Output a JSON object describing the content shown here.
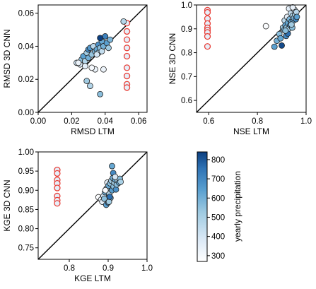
{
  "colors": {
    "ring_red": "#e8413a",
    "ring_red_fill": "#e6eef8",
    "point_edge": "#222222",
    "colormap": [
      "#ffffff",
      "#dbe9f6",
      "#9ecae1",
      "#5aa0d0",
      "#2f73b5",
      "#0c3f80"
    ],
    "diag": "#000000"
  },
  "chart_data": [
    {
      "type": "scatter",
      "xlabel": "RMSD LTM",
      "ylabel": "RMSD 3D CNN",
      "xlim": [
        0.0,
        0.065
      ],
      "ylim": [
        0.0,
        0.065
      ],
      "xticks": [
        "0.00",
        "0.02",
        "0.04",
        "0.06"
      ],
      "yticks": [
        "0.00",
        "0.02",
        "0.04",
        "0.06"
      ],
      "xtick_values": [
        0.0,
        0.02,
        0.04,
        0.06
      ],
      "ytick_values": [
        0.0,
        0.02,
        0.04,
        0.06
      ],
      "diagonal": true,
      "red_rings": {
        "x": [
          0.053,
          0.053,
          0.053,
          0.053,
          0.053,
          0.053,
          0.053,
          0.053,
          0.053
        ],
        "y": [
          0.054,
          0.049,
          0.044,
          0.039,
          0.034,
          0.027,
          0.022,
          0.017,
          0.015
        ]
      },
      "points": [
        {
          "x": 0.023,
          "y": 0.03,
          "p": 420
        },
        {
          "x": 0.025,
          "y": 0.029,
          "p": 380
        },
        {
          "x": 0.026,
          "y": 0.032,
          "p": 560
        },
        {
          "x": 0.027,
          "y": 0.034,
          "p": 640
        },
        {
          "x": 0.028,
          "y": 0.031,
          "p": 480
        },
        {
          "x": 0.029,
          "y": 0.036,
          "p": 520
        },
        {
          "x": 0.03,
          "y": 0.033,
          "p": 600
        },
        {
          "x": 0.03,
          "y": 0.038,
          "p": 700
        },
        {
          "x": 0.031,
          "y": 0.039,
          "p": 660
        },
        {
          "x": 0.032,
          "y": 0.035,
          "p": 540
        },
        {
          "x": 0.033,
          "y": 0.04,
          "p": 460
        },
        {
          "x": 0.034,
          "y": 0.037,
          "p": 580
        },
        {
          "x": 0.035,
          "y": 0.038,
          "p": 620
        },
        {
          "x": 0.036,
          "y": 0.036,
          "p": 500
        },
        {
          "x": 0.036,
          "y": 0.041,
          "p": 680
        },
        {
          "x": 0.037,
          "y": 0.039,
          "p": 560
        },
        {
          "x": 0.038,
          "y": 0.043,
          "p": 620
        },
        {
          "x": 0.038,
          "y": 0.037,
          "p": 440
        },
        {
          "x": 0.039,
          "y": 0.04,
          "p": 600
        },
        {
          "x": 0.04,
          "y": 0.046,
          "p": 720
        },
        {
          "x": 0.041,
          "y": 0.042,
          "p": 640
        },
        {
          "x": 0.042,
          "y": 0.039,
          "p": 520
        },
        {
          "x": 0.043,
          "y": 0.044,
          "p": 580
        },
        {
          "x": 0.037,
          "y": 0.045,
          "p": 840
        },
        {
          "x": 0.034,
          "y": 0.026,
          "p": 330
        },
        {
          "x": 0.039,
          "y": 0.026,
          "p": 330
        },
        {
          "x": 0.032,
          "y": 0.027,
          "p": 300
        },
        {
          "x": 0.028,
          "y": 0.028,
          "p": 360
        },
        {
          "x": 0.029,
          "y": 0.019,
          "p": 520
        },
        {
          "x": 0.031,
          "y": 0.016,
          "p": 480
        },
        {
          "x": 0.037,
          "y": 0.011,
          "p": 560
        },
        {
          "x": 0.024,
          "y": 0.03,
          "p": 330
        },
        {
          "x": 0.035,
          "y": 0.035,
          "p": 400
        },
        {
          "x": 0.051,
          "y": 0.055,
          "p": 470
        }
      ]
    },
    {
      "type": "scatter",
      "xlabel": "NSE LTM",
      "ylabel": "NSE 3D CNN",
      "xlim": [
        0.55,
        1.0
      ],
      "ylim": [
        0.55,
        1.0
      ],
      "xticks": [
        "0.6",
        "0.8",
        "1.0"
      ],
      "yticks": [
        "0.6",
        "0.7",
        "0.8",
        "0.9",
        "1.0"
      ],
      "xtick_values": [
        0.6,
        0.8,
        1.0
      ],
      "ytick_values": [
        0.6,
        0.7,
        0.8,
        0.9,
        1.0
      ],
      "diagonal": true,
      "red_rings": {
        "x": [
          0.595,
          0.595,
          0.595,
          0.595,
          0.595,
          0.595,
          0.595,
          0.595,
          0.595
        ],
        "y": [
          0.978,
          0.969,
          0.943,
          0.922,
          0.904,
          0.895,
          0.885,
          0.868,
          0.826
        ]
      },
      "points": [
        {
          "x": 0.835,
          "y": 0.911,
          "p": 290
        },
        {
          "x": 0.87,
          "y": 0.825,
          "p": 640
        },
        {
          "x": 0.88,
          "y": 0.85,
          "p": 600
        },
        {
          "x": 0.89,
          "y": 0.878,
          "p": 560
        },
        {
          "x": 0.895,
          "y": 0.86,
          "p": 620
        },
        {
          "x": 0.9,
          "y": 0.83,
          "p": 820
        },
        {
          "x": 0.905,
          "y": 0.905,
          "p": 520
        },
        {
          "x": 0.91,
          "y": 0.895,
          "p": 600
        },
        {
          "x": 0.912,
          "y": 0.935,
          "p": 460
        },
        {
          "x": 0.915,
          "y": 0.915,
          "p": 640
        },
        {
          "x": 0.918,
          "y": 0.87,
          "p": 700
        },
        {
          "x": 0.92,
          "y": 0.905,
          "p": 560
        },
        {
          "x": 0.922,
          "y": 0.95,
          "p": 360
        },
        {
          "x": 0.925,
          "y": 0.925,
          "p": 620
        },
        {
          "x": 0.928,
          "y": 0.9,
          "p": 520
        },
        {
          "x": 0.93,
          "y": 0.985,
          "p": 360
        },
        {
          "x": 0.932,
          "y": 0.94,
          "p": 580
        },
        {
          "x": 0.935,
          "y": 0.915,
          "p": 700
        },
        {
          "x": 0.938,
          "y": 0.965,
          "p": 440
        },
        {
          "x": 0.94,
          "y": 0.93,
          "p": 640
        },
        {
          "x": 0.943,
          "y": 0.905,
          "p": 560
        },
        {
          "x": 0.945,
          "y": 0.955,
          "p": 500
        },
        {
          "x": 0.948,
          "y": 0.935,
          "p": 620
        },
        {
          "x": 0.95,
          "y": 0.945,
          "p": 580
        },
        {
          "x": 0.952,
          "y": 0.98,
          "p": 420
        },
        {
          "x": 0.955,
          "y": 0.96,
          "p": 520
        },
        {
          "x": 0.958,
          "y": 0.94,
          "p": 700
        },
        {
          "x": 0.96,
          "y": 0.97,
          "p": 460
        },
        {
          "x": 0.962,
          "y": 0.95,
          "p": 640
        },
        {
          "x": 0.945,
          "y": 0.99,
          "p": 340
        },
        {
          "x": 0.925,
          "y": 0.88,
          "p": 760
        },
        {
          "x": 0.915,
          "y": 0.892,
          "p": 560
        },
        {
          "x": 0.94,
          "y": 0.918,
          "p": 520
        }
      ]
    },
    {
      "type": "scatter",
      "xlabel": "KGE LTM",
      "ylabel": "KGE 3D CNN",
      "xlim": [
        0.72,
        1.0
      ],
      "ylim": [
        0.72,
        1.0
      ],
      "xticks": [
        "0.8",
        "0.9",
        "1.0"
      ],
      "yticks": [
        "0.75",
        "0.80",
        "0.85",
        "0.90",
        "0.95",
        "1.00"
      ],
      "xtick_values": [
        0.8,
        0.9,
        1.0
      ],
      "ytick_values": [
        0.75,
        0.8,
        0.85,
        0.9,
        0.95,
        1.0
      ],
      "diagonal": true,
      "red_rings": {
        "x": [
          0.769,
          0.769,
          0.769,
          0.769,
          0.769,
          0.769,
          0.769,
          0.769
        ],
        "y": [
          0.953,
          0.944,
          0.927,
          0.918,
          0.906,
          0.885,
          0.874,
          0.866
        ]
      },
      "points": [
        {
          "x": 0.875,
          "y": 0.882,
          "p": 290
        },
        {
          "x": 0.882,
          "y": 0.876,
          "p": 330
        },
        {
          "x": 0.885,
          "y": 0.87,
          "p": 360
        },
        {
          "x": 0.888,
          "y": 0.885,
          "p": 420
        },
        {
          "x": 0.89,
          "y": 0.878,
          "p": 560
        },
        {
          "x": 0.892,
          "y": 0.895,
          "p": 600
        },
        {
          "x": 0.895,
          "y": 0.862,
          "p": 640
        },
        {
          "x": 0.896,
          "y": 0.905,
          "p": 520
        },
        {
          "x": 0.898,
          "y": 0.92,
          "p": 360
        },
        {
          "x": 0.9,
          "y": 0.868,
          "p": 700
        },
        {
          "x": 0.901,
          "y": 0.912,
          "p": 620
        },
        {
          "x": 0.903,
          "y": 0.89,
          "p": 480
        },
        {
          "x": 0.905,
          "y": 0.918,
          "p": 560
        },
        {
          "x": 0.906,
          "y": 0.88,
          "p": 600
        },
        {
          "x": 0.908,
          "y": 0.925,
          "p": 520
        },
        {
          "x": 0.91,
          "y": 0.9,
          "p": 640
        },
        {
          "x": 0.912,
          "y": 0.932,
          "p": 600
        },
        {
          "x": 0.913,
          "y": 0.945,
          "p": 700
        },
        {
          "x": 0.914,
          "y": 0.91,
          "p": 560
        },
        {
          "x": 0.916,
          "y": 0.92,
          "p": 520
        },
        {
          "x": 0.918,
          "y": 0.928,
          "p": 620
        },
        {
          "x": 0.92,
          "y": 0.902,
          "p": 680
        },
        {
          "x": 0.922,
          "y": 0.915,
          "p": 560
        },
        {
          "x": 0.925,
          "y": 0.925,
          "p": 480
        },
        {
          "x": 0.928,
          "y": 0.92,
          "p": 620
        },
        {
          "x": 0.93,
          "y": 0.93,
          "p": 560
        },
        {
          "x": 0.932,
          "y": 0.922,
          "p": 500
        },
        {
          "x": 0.91,
          "y": 0.963,
          "p": 620
        },
        {
          "x": 0.893,
          "y": 0.9,
          "p": 300
        },
        {
          "x": 0.902,
          "y": 0.87,
          "p": 520
        },
        {
          "x": 0.918,
          "y": 0.935,
          "p": 400
        },
        {
          "x": 0.904,
          "y": 0.883,
          "p": 760
        }
      ]
    }
  ],
  "colorbar": {
    "label": "yearly precipitation",
    "min": 270,
    "max": 840,
    "ticks": [
      "300",
      "400",
      "500",
      "600",
      "700",
      "800"
    ],
    "tick_values": [
      300,
      400,
      500,
      600,
      700,
      800
    ]
  }
}
